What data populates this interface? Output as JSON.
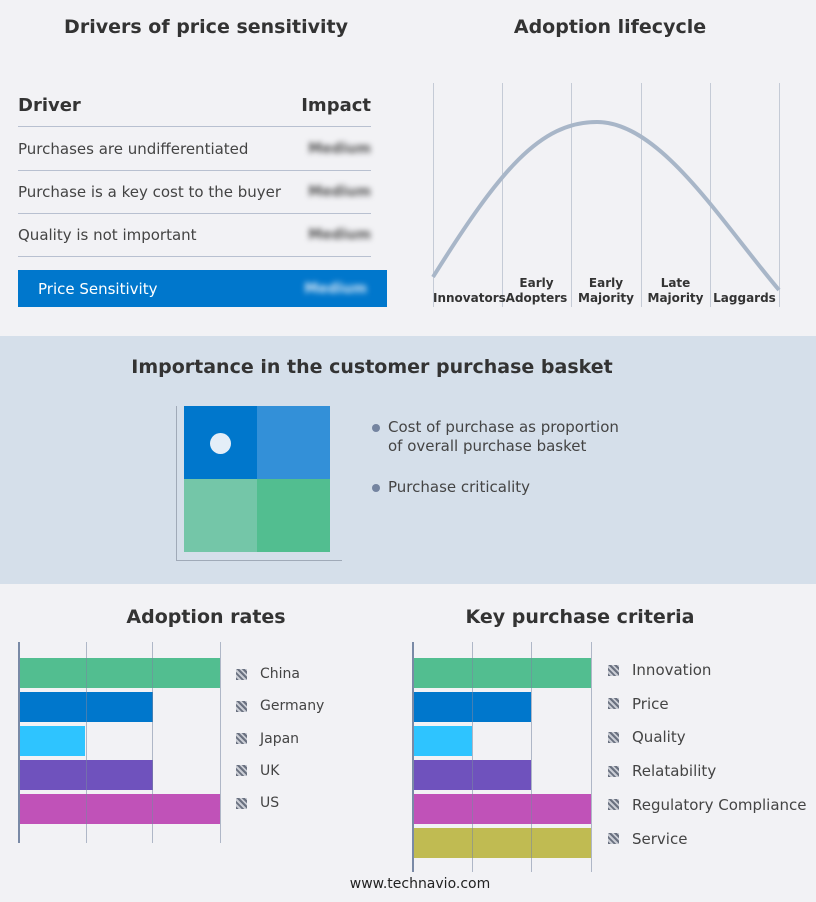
{
  "drivers": {
    "title": "Drivers of price sensitivity",
    "col_driver": "Driver",
    "col_impact": "Impact",
    "rows": [
      {
        "driver": "Purchases are undifferentiated",
        "impact": "Medium"
      },
      {
        "driver": "Purchase is a key cost to the buyer",
        "impact": "Medium"
      },
      {
        "driver": "Quality is not important",
        "impact": "Medium"
      }
    ],
    "summary": {
      "label": "Price Sensitivity",
      "impact": "Medium"
    },
    "accent": "#0077cc"
  },
  "lifecycle": {
    "title": "Adoption lifecycle",
    "stages": [
      [
        "Innovators"
      ],
      [
        "Early",
        "Adopters"
      ],
      [
        "Early",
        "Majority"
      ],
      [
        "Late",
        "Majority"
      ],
      [
        "Laggards"
      ]
    ],
    "curve_color": "#a8b6c8"
  },
  "basket": {
    "title": "Importance in the customer purchase basket",
    "legend": [
      "Cost of purchase as proportion of overall purchase basket",
      "Purchase criticality"
    ],
    "quadrant_colors": [
      "#0077cc",
      "#3390d8",
      "#74c6a8",
      "#52be90"
    ]
  },
  "chart_data": [
    {
      "type": "bar",
      "title": "Adoption rates",
      "orientation": "horizontal",
      "categories": [
        "China",
        "Germany",
        "Japan",
        "UK",
        "US"
      ],
      "values": [
        3,
        2,
        1,
        2,
        3
      ],
      "xlim": [
        0,
        3
      ],
      "grid": true,
      "legend": "right",
      "colors": [
        "#52be90",
        "#0077cc",
        "#2ec4ff",
        "#6f52bd",
        "#c052b8"
      ]
    },
    {
      "type": "bar",
      "title": "Key purchase criteria",
      "orientation": "horizontal",
      "categories": [
        "Innovation",
        "Price",
        "Quality",
        "Relatability",
        "Regulatory Compliance",
        "Service"
      ],
      "values": [
        3,
        2,
        1,
        2,
        3,
        3
      ],
      "xlim": [
        0,
        3
      ],
      "grid": true,
      "legend": "right",
      "colors": [
        "#52be90",
        "#0077cc",
        "#2ec4ff",
        "#6f52bd",
        "#c052b8",
        "#c0bb52"
      ]
    }
  ],
  "footer": "www.technavio.com"
}
